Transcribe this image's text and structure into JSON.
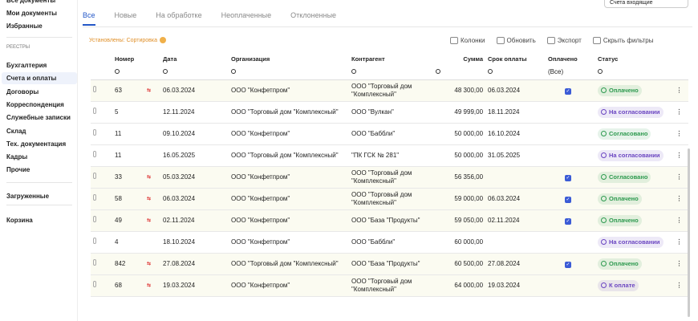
{
  "sidebar": {
    "top": [
      "Все документы",
      "Мои документы",
      "Избранные"
    ],
    "section": "РЕЕСТРЫ",
    "registries": [
      "Бухгалтерия",
      "Счета и оплаты",
      "Договоры",
      "Корреспонденция",
      "Служебные записки",
      "Склад",
      "Тех. документация",
      "Кадры",
      "Прочие"
    ],
    "active": 1,
    "bottom": [
      "Загруженные",
      "Корзина"
    ]
  },
  "selector": "Счета входящие",
  "tabs": [
    "Все",
    "Новые",
    "На обработке",
    "Неоплаченные",
    "Отклоненные"
  ],
  "toolbar": {
    "filters_label": "Установлены: Сортировка",
    "buttons": [
      "Колонки",
      "Обновить",
      "Экспорт",
      "Скрыть фильтры"
    ]
  },
  "table": {
    "columns": [
      "Номер",
      "Дата",
      "Организация",
      "Контрагент",
      "Сумма",
      "Срок оплаты",
      "Оплачено",
      "Статус"
    ],
    "filter_all": "(Все)",
    "rows": [
      {
        "number": "63",
        "flag": true,
        "date": "06.03.2024",
        "org": "ООО \"Конфетпром\"",
        "counterparty": "ООО \"Торговый дом \"Комплексный\"",
        "sum": "48 300,00",
        "due": "06.03.2024",
        "paid": true,
        "status": "Оплачено",
        "status_color": "#2e9a4f"
      },
      {
        "number": "5",
        "flag": false,
        "date": "12.11.2024",
        "org": "ООО \"Торговый дом \"Комплексный\"",
        "counterparty": "ООО \"Вулкан\"",
        "sum": "49 999,00",
        "due": "18.11.2024",
        "paid": false,
        "status": "На согласовании",
        "status_color": "#6b46c1"
      },
      {
        "number": "11",
        "flag": false,
        "date": "09.10.2024",
        "org": "ООО \"Конфетпром\"",
        "counterparty": "ООО \"Баббли\"",
        "sum": "50 000,00",
        "due": "16.10.2024",
        "paid": false,
        "status": "Согласовано",
        "status_color": "#2e9a4f"
      },
      {
        "number": "11",
        "flag": false,
        "date": "16.05.2025",
        "org": "ООО \"Торговый дом \"Комплексный\"",
        "counterparty": "\"ПК ГСК № 281\"",
        "sum": "50 000,00",
        "due": "31.05.2025",
        "paid": false,
        "status": "На согласовании",
        "status_color": "#6b46c1"
      },
      {
        "number": "33",
        "flag": true,
        "date": "05.03.2024",
        "org": "ООО \"Конфетпром\"",
        "counterparty": "ООО \"Торговый дом \"Комплексный\"",
        "sum": "56 356,00",
        "due": "",
        "paid": true,
        "status": "Согласовано",
        "status_color": "#2e9a4f"
      },
      {
        "number": "58",
        "flag": true,
        "date": "06.03.2024",
        "org": "ООО \"Конфетпром\"",
        "counterparty": "ООО \"Торговый дом \"Комплексный\"",
        "sum": "59 000,00",
        "due": "06.03.2024",
        "paid": true,
        "status": "Оплачено",
        "status_color": "#2e9a4f"
      },
      {
        "number": "49",
        "flag": true,
        "date": "02.11.2024",
        "org": "ООО \"Конфетпром\"",
        "counterparty": "ООО \"База \"Продукты\"",
        "sum": "59 050,00",
        "due": "02.11.2024",
        "paid": true,
        "status": "Оплачено",
        "status_color": "#2e9a4f"
      },
      {
        "number": "4",
        "flag": false,
        "date": "18.10.2024",
        "org": "ООО \"Конфетпром\"",
        "counterparty": "ООО \"Баббли\"",
        "sum": "60 000,00",
        "due": "",
        "paid": false,
        "status": "На согласовании",
        "status_color": "#6b46c1"
      },
      {
        "number": "842",
        "flag": true,
        "date": "27.08.2024",
        "org": "ООО \"Торговый дом \"Комплексный\"",
        "counterparty": "ООО \"База \"Продукты\"",
        "sum": "60 500,00",
        "due": "27.08.2024",
        "paid": true,
        "status": "Оплачено",
        "status_color": "#2e9a4f"
      },
      {
        "number": "68",
        "flag": true,
        "date": "19.03.2024",
        "org": "ООО \"Конфетпром\"",
        "counterparty": "ООО \"Торговый дом \"Комплексный\"",
        "sum": "64 000,00",
        "due": "19.03.2024",
        "paid": false,
        "status": "К оплате",
        "status_color": "#6b46c1"
      }
    ]
  }
}
